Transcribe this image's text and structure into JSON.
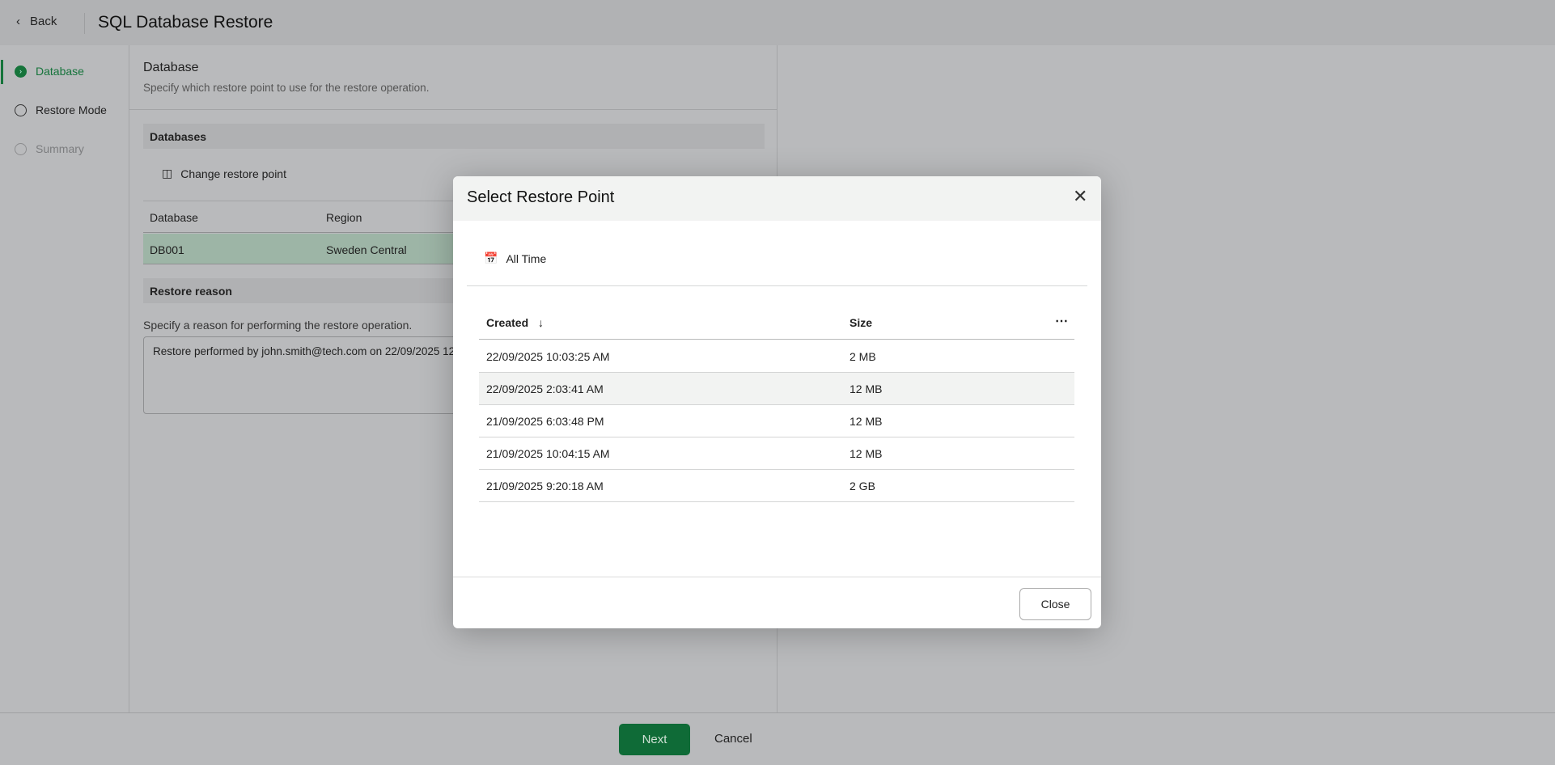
{
  "header": {
    "back_label": "Back",
    "title": "SQL Database Restore"
  },
  "steps": [
    {
      "label": "Database",
      "state": "active"
    },
    {
      "label": "Restore Mode",
      "state": "pending"
    },
    {
      "label": "Summary",
      "state": "disabled"
    }
  ],
  "panel": {
    "title": "Database",
    "subtitle": "Specify which restore point to use for the restore operation.",
    "databases_section": "Databases",
    "change_restore_point": "Change restore point",
    "table": {
      "columns": [
        "Database",
        "Region"
      ],
      "rows": [
        [
          "DB001",
          "Sweden Central"
        ]
      ]
    },
    "reason_section": "Restore reason",
    "reason_label": "Specify a reason for performing the restore operation.",
    "reason_value": "Restore performed by john.smith@tech.com on 22/09/2025 12"
  },
  "footer": {
    "next": "Next",
    "cancel": "Cancel"
  },
  "dialog": {
    "title": "Select Restore Point",
    "filter": "All Time",
    "columns": [
      "Created",
      "Size"
    ],
    "sort": "descending",
    "rows": [
      [
        "22/09/2025 10:03:25 AM",
        "2 MB"
      ],
      [
        "22/09/2025 2:03:41 AM",
        "12 MB"
      ],
      [
        "21/09/2025 6:03:48 PM",
        "12 MB"
      ],
      [
        "21/09/2025 10:04:15 AM",
        "12 MB"
      ],
      [
        "21/09/2025 9:20:18 AM",
        "2 GB"
      ]
    ],
    "hovered_row": 1,
    "close": "Close"
  },
  "colors": {
    "accent": "#0f6b37",
    "selected_row": "#9db5a6"
  }
}
